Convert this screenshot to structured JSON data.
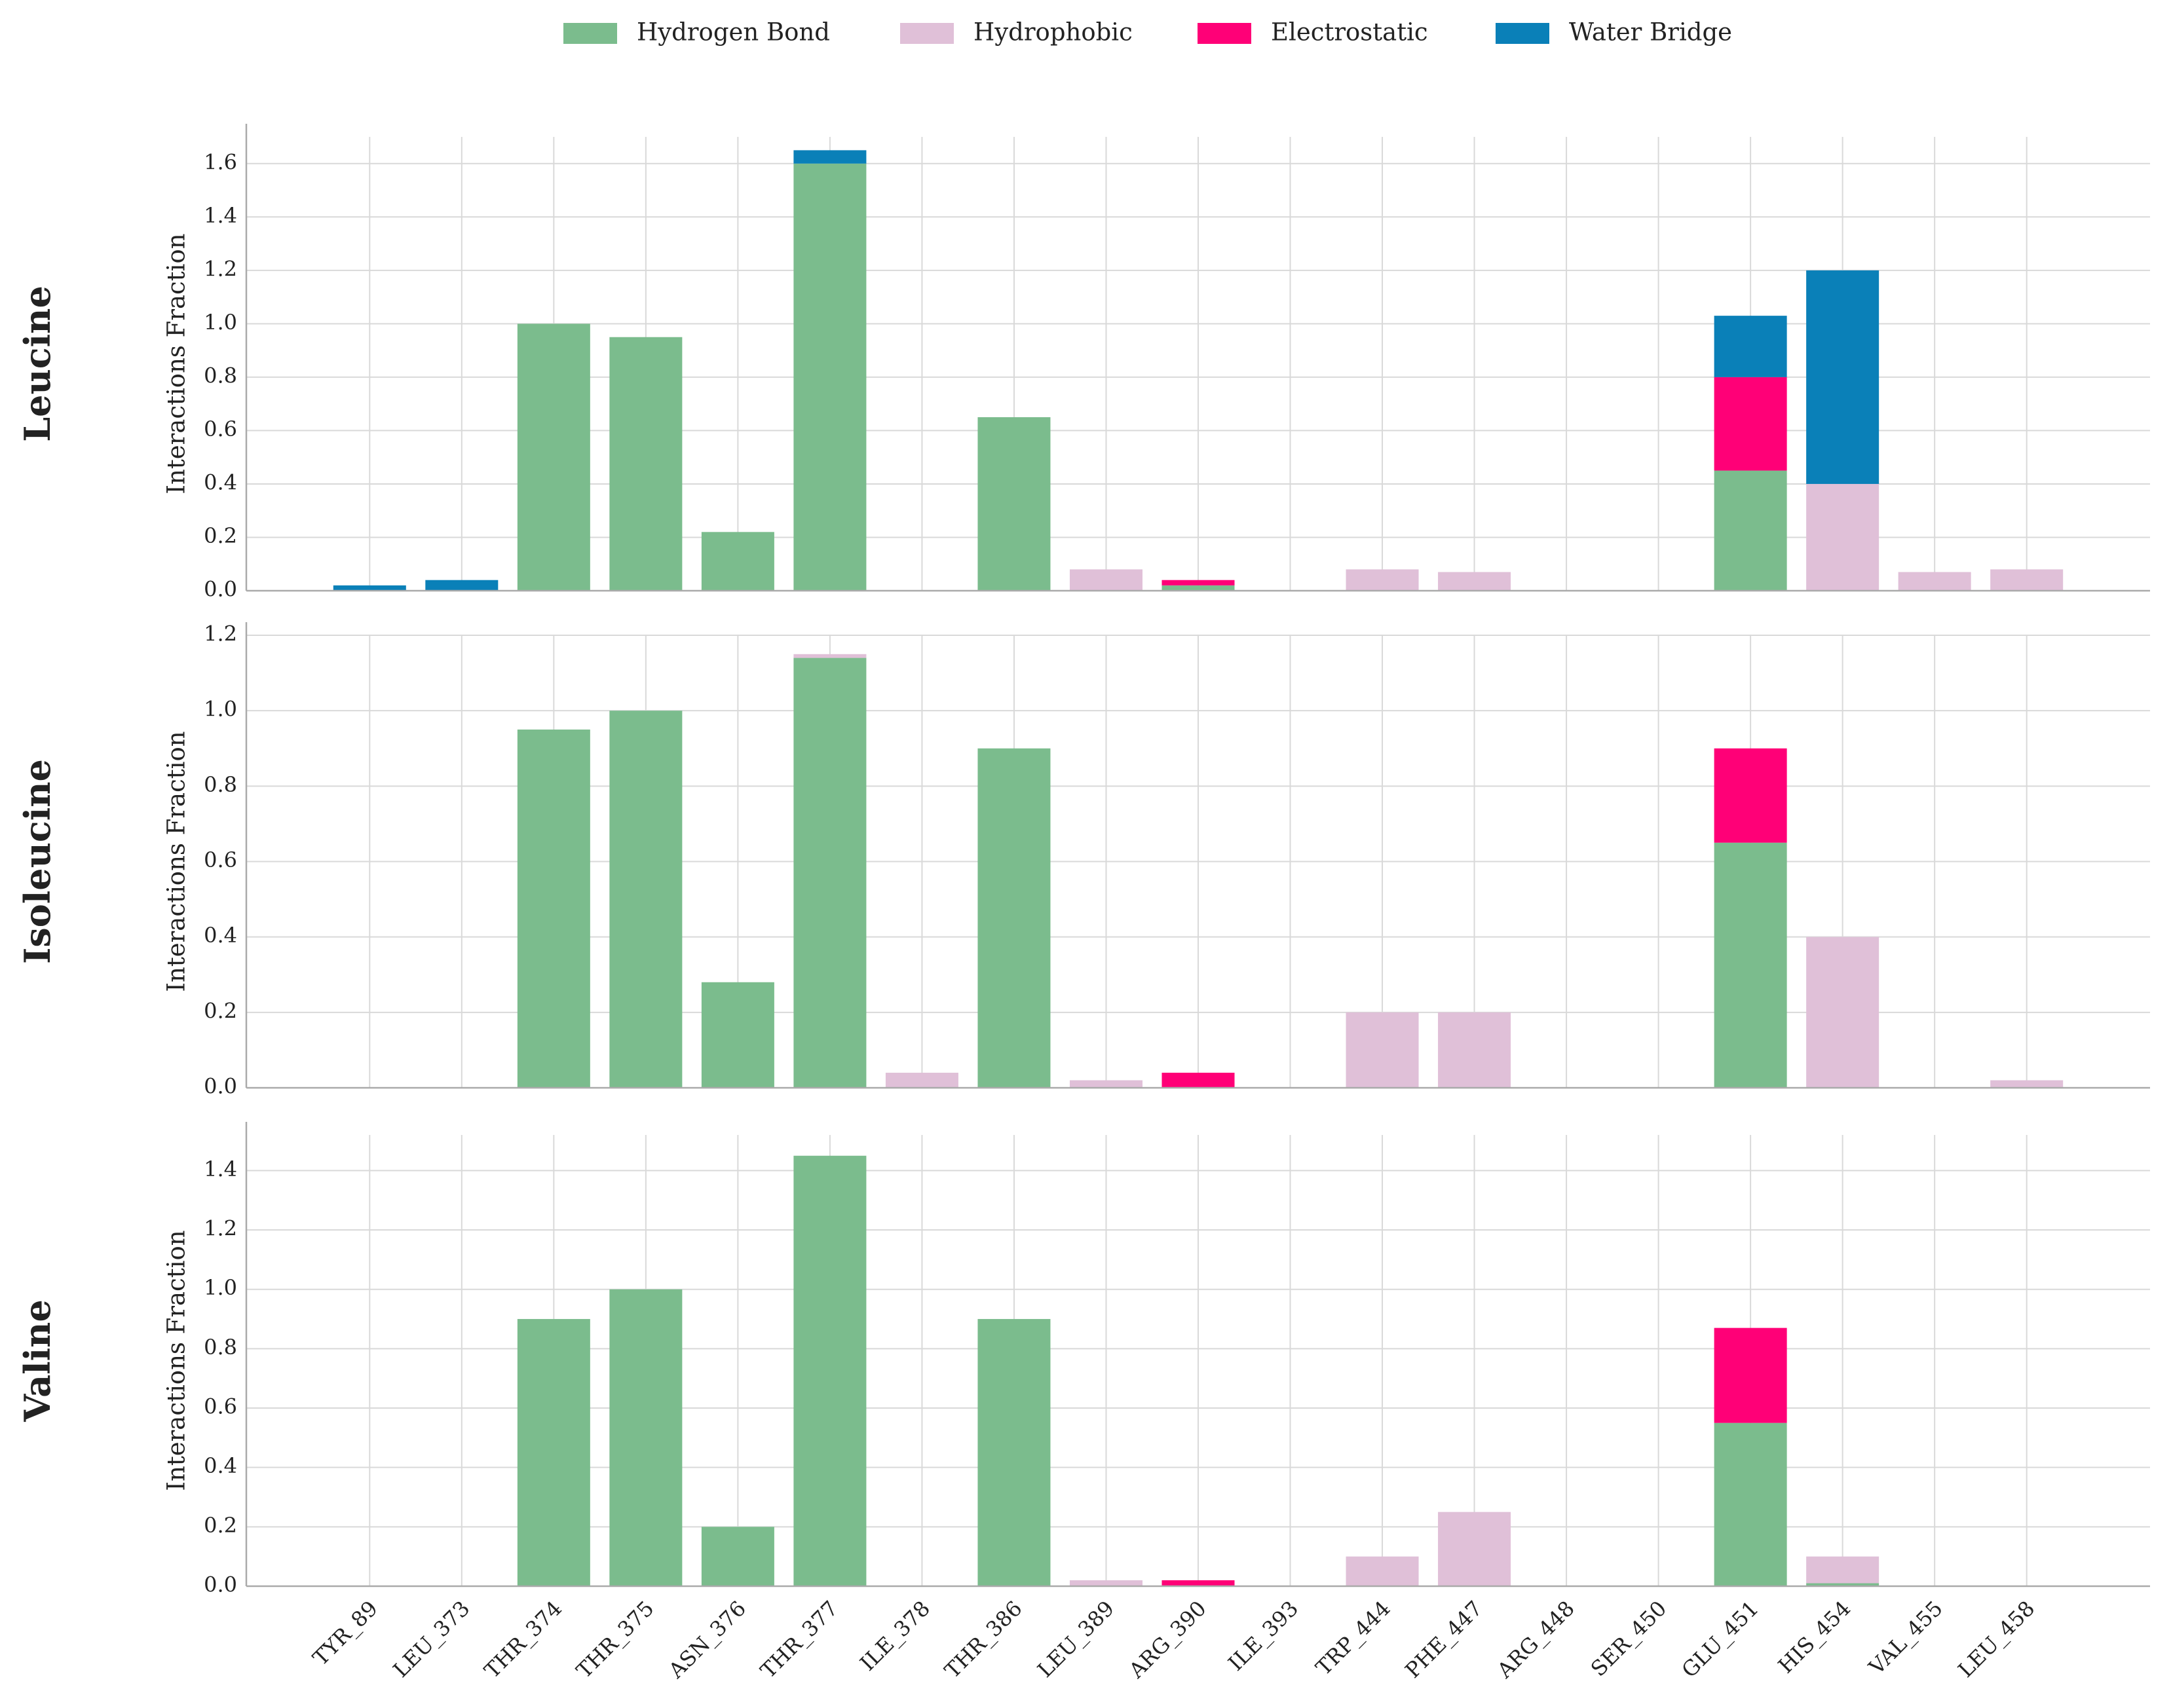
{
  "chart_data": [
    {
      "type": "bar",
      "stacked": true,
      "title": "Leucine",
      "ylabel": "Interactions Fraction",
      "categories": [
        "TYR_89",
        "LEU_373",
        "THR_374",
        "THR_375",
        "ASN_376",
        "THR_377",
        "ILE_378",
        "THR_386",
        "LEU_389",
        "ARG_390",
        "ILE_393",
        "TRP_444",
        "PHE_447",
        "ARG_448",
        "SER_450",
        "GLU_451",
        "HIS_454",
        "VAL_455",
        "LEU_458"
      ],
      "ylim": [
        0,
        1.7
      ],
      "yticks": [
        {
          "value": 0,
          "label": "0.0"
        },
        0.2,
        0.4,
        0.6,
        0.8,
        {
          "value": 1,
          "label": "1.0"
        },
        1.2,
        1.4,
        1.6
      ],
      "grid": true,
      "series": [
        {
          "name": "Hydrogen Bond",
          "color": "#7bbc8d",
          "values": [
            0,
            0,
            1.0,
            0.95,
            0.22,
            1.6,
            0,
            0.65,
            0,
            0.02,
            0,
            0,
            0,
            0,
            0,
            0.45,
            0,
            0,
            0
          ]
        },
        {
          "name": "Hydrophobic",
          "color": "#e0c0d8",
          "values": [
            0,
            0,
            0,
            0,
            0,
            0,
            0,
            0,
            0.08,
            0,
            0,
            0.08,
            0.07,
            0,
            0,
            0,
            0.4,
            0.07,
            0.08
          ]
        },
        {
          "name": "Electrostatic",
          "color": "#ff0077",
          "values": [
            0,
            0,
            0,
            0,
            0,
            0,
            0,
            0,
            0,
            0.02,
            0,
            0,
            0,
            0,
            0,
            0.35,
            0,
            0,
            0
          ]
        },
        {
          "name": "Water Bridge",
          "color": "#0a80b8",
          "values": [
            0.02,
            0.04,
            0,
            0,
            0,
            0.05,
            0,
            0,
            0,
            0,
            0,
            0,
            0,
            0,
            0,
            0.23,
            0.8,
            0,
            0
          ]
        }
      ]
    },
    {
      "type": "bar",
      "stacked": true,
      "title": "Isoleucine",
      "ylabel": "Interactions Fraction",
      "categories": [
        "TYR_89",
        "LEU_373",
        "THR_374",
        "THR_375",
        "ASN_376",
        "THR_377",
        "ILE_378",
        "THR_386",
        "LEU_389",
        "ARG_390",
        "ILE_393",
        "TRP_444",
        "PHE_447",
        "ARG_448",
        "SER_450",
        "GLU_451",
        "HIS_454",
        "VAL_455",
        "LEU_458"
      ],
      "ylim": [
        0,
        1.2
      ],
      "yticks": [
        {
          "value": 0,
          "label": "0.0"
        },
        0.2,
        0.4,
        0.6,
        0.8,
        {
          "value": 1,
          "label": "1.0"
        },
        1.2
      ],
      "grid": true,
      "series": [
        {
          "name": "Hydrogen Bond",
          "color": "#7bbc8d",
          "values": [
            0,
            0,
            0.95,
            1.0,
            0.28,
            1.14,
            0,
            0.9,
            0,
            0,
            0,
            0,
            0,
            0,
            0,
            0.65,
            0,
            0,
            0
          ]
        },
        {
          "name": "Hydrophobic",
          "color": "#e0c0d8",
          "values": [
            0,
            0,
            0,
            0,
            0,
            0.01,
            0.04,
            0,
            0.02,
            0,
            0,
            0.2,
            0.2,
            0,
            0,
            0,
            0.4,
            0,
            0.02
          ]
        },
        {
          "name": "Electrostatic",
          "color": "#ff0077",
          "values": [
            0,
            0,
            0,
            0,
            0,
            0,
            0,
            0,
            0,
            0.04,
            0,
            0,
            0,
            0,
            0,
            0.25,
            0,
            0,
            0
          ]
        },
        {
          "name": "Water Bridge",
          "color": "#0a80b8",
          "values": [
            0,
            0,
            0,
            0,
            0,
            0,
            0,
            0,
            0,
            0,
            0,
            0,
            0,
            0,
            0,
            0,
            0,
            0,
            0
          ]
        }
      ]
    },
    {
      "type": "bar",
      "stacked": true,
      "title": "Valine",
      "ylabel": "Interactions Fraction",
      "categories": [
        "TYR_89",
        "LEU_373",
        "THR_374",
        "THR_375",
        "ASN_376",
        "THR_377",
        "ILE_378",
        "THR_386",
        "LEU_389",
        "ARG_390",
        "ILE_393",
        "TRP_444",
        "PHE_447",
        "ARG_448",
        "SER_450",
        "GLU_451",
        "HIS_454",
        "VAL_455",
        "LEU_458"
      ],
      "ylim": [
        0,
        1.52
      ],
      "yticks": [
        {
          "value": 0,
          "label": "0.0"
        },
        0.2,
        0.4,
        0.6,
        0.8,
        {
          "value": 1,
          "label": "1.0"
        },
        1.2,
        1.4
      ],
      "grid": true,
      "series": [
        {
          "name": "Hydrogen Bond",
          "color": "#7bbc8d",
          "values": [
            0,
            0,
            0.9,
            1.0,
            0.2,
            1.45,
            0,
            0.9,
            0,
            0,
            0,
            0,
            0,
            0,
            0,
            0.55,
            0.01,
            0,
            0
          ]
        },
        {
          "name": "Hydrophobic",
          "color": "#e0c0d8",
          "values": [
            0,
            0,
            0,
            0,
            0,
            0,
            0,
            0,
            0.02,
            0,
            0,
            0.1,
            0.25,
            0,
            0,
            0,
            0.09,
            0,
            0
          ]
        },
        {
          "name": "Electrostatic",
          "color": "#ff0077",
          "values": [
            0,
            0,
            0,
            0,
            0,
            0,
            0,
            0,
            0,
            0.02,
            0,
            0,
            0,
            0,
            0,
            0.32,
            0,
            0,
            0
          ]
        },
        {
          "name": "Water Bridge",
          "color": "#0a80b8",
          "values": [
            0,
            0,
            0,
            0,
            0,
            0,
            0,
            0,
            0,
            0,
            0,
            0,
            0,
            0,
            0,
            0,
            0,
            0,
            0
          ]
        }
      ]
    }
  ]
}
